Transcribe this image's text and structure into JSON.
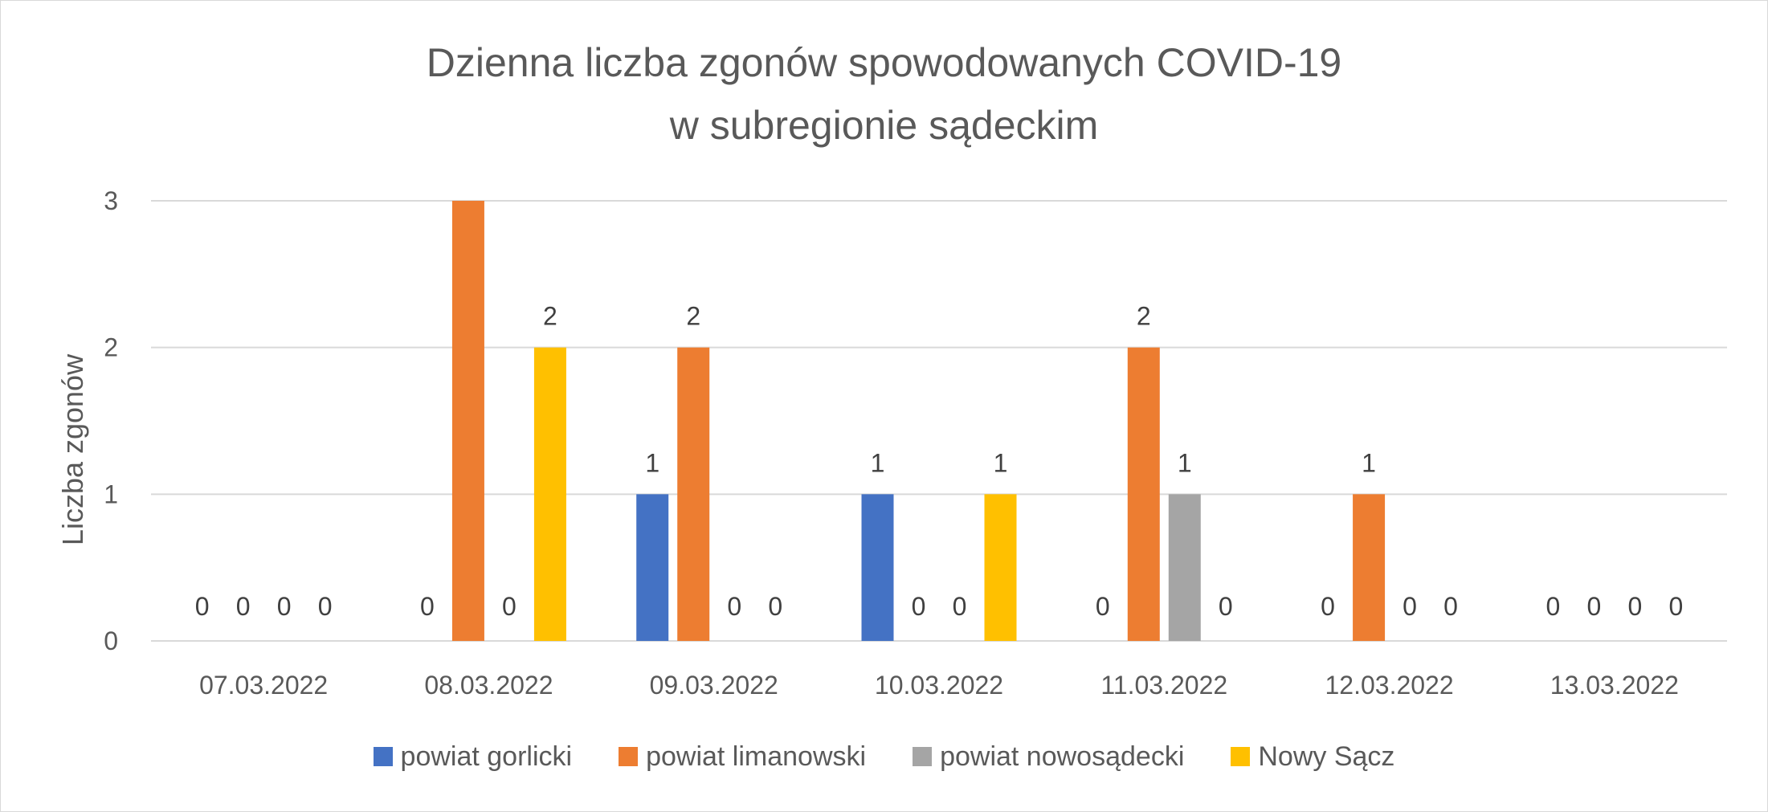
{
  "chart_data": {
    "type": "bar",
    "title_lines": [
      "Dzienna liczba zgonów spowodowanych COVID-19",
      "w subregionie sądeckim"
    ],
    "xlabel": "",
    "ylabel": "Liczba zgonów",
    "ylim": [
      0,
      3
    ],
    "yticks": [
      "0",
      "1",
      "2",
      "3"
    ],
    "grid": true,
    "legend_position": "bottom",
    "categories": [
      "07.03.2022",
      "08.03.2022",
      "09.03.2022",
      "10.03.2022",
      "11.03.2022",
      "12.03.2022",
      "13.03.2022"
    ],
    "series": [
      {
        "name": "powiat gorlicki",
        "color": "#4472C4",
        "values": [
          0,
          0,
          1,
          1,
          0,
          0,
          0
        ]
      },
      {
        "name": "powiat limanowski",
        "color": "#ED7D31",
        "values": [
          0,
          3,
          2,
          0,
          2,
          1,
          0
        ]
      },
      {
        "name": "powiat nowosądecki",
        "color": "#A5A5A5",
        "values": [
          0,
          0,
          0,
          0,
          1,
          0,
          0
        ]
      },
      {
        "name": "Nowy Sącz",
        "color": "#FFC000",
        "values": [
          0,
          2,
          0,
          1,
          0,
          0,
          0
        ]
      }
    ],
    "data_labels": [
      [
        "0",
        "0",
        "0",
        "0"
      ],
      [
        "0",
        "",
        "0",
        "2"
      ],
      [
        "1",
        "2",
        "0",
        "0"
      ],
      [
        "1",
        "0",
        "0",
        "1"
      ],
      [
        "0",
        "2",
        "1",
        "0"
      ],
      [
        "0",
        "1",
        "0",
        "0"
      ],
      [
        "0",
        "0",
        "0",
        "0"
      ]
    ]
  }
}
